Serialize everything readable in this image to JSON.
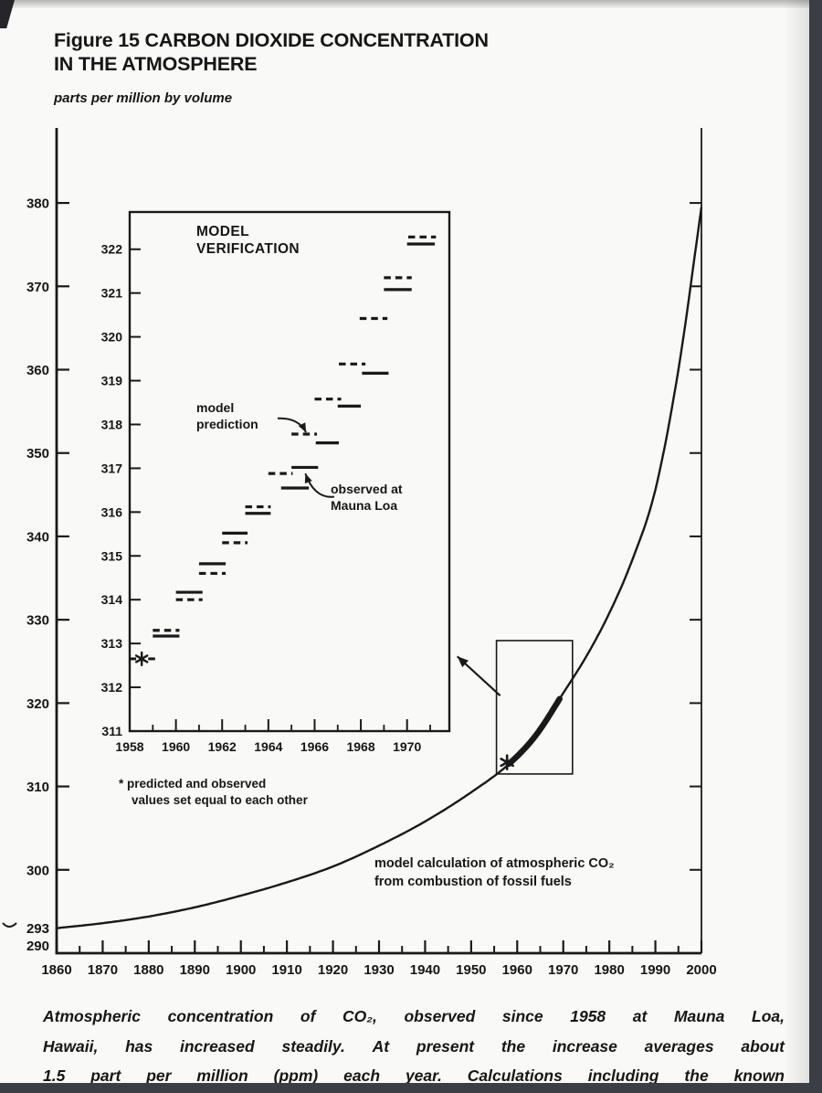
{
  "header": {
    "title_line1": "Figure 15 CARBON DIOXIDE CONCENTRATION",
    "title_line2": "IN THE ATMOSPHERE",
    "units_label": "parts per million by volume"
  },
  "caption": {
    "lines": [
      "Atmospheric concentration of CO₂, observed since 1958 at Mauna Loa,",
      "Hawaii, has increased steadily. At present the increase averages about",
      "1.5 part per million (ppm) each year. Calculations including the known"
    ]
  },
  "colors": {
    "ink": "#191919",
    "paper": "#f9f9f7",
    "scan_bar": "#3b3e45"
  },
  "chart_data": [
    {
      "type": "line",
      "name": "atmospheric-co2-1860-2000",
      "unit": "parts per million by volume",
      "xlim": [
        1860,
        2000
      ],
      "ylim": [
        290,
        389
      ],
      "x_ticks_major": [
        1860,
        1870,
        1880,
        1890,
        1900,
        1910,
        1920,
        1930,
        1940,
        1950,
        1960,
        1970,
        1980,
        1990,
        2000
      ],
      "x_minor_step": 5,
      "y_ticks": [
        300,
        310,
        320,
        330,
        340,
        350,
        360,
        370,
        380
      ],
      "y_extra_labels": [
        {
          "value": 293,
          "label": "293"
        },
        {
          "value": 290,
          "label": "290"
        }
      ],
      "grid": false,
      "series": [
        {
          "name": "model calculation of atmospheric CO₂ from combustion of fossil fuels",
          "points": [
            [
              1860,
              293
            ],
            [
              1870,
              293.6
            ],
            [
              1880,
              294.4
            ],
            [
              1890,
              295.5
            ],
            [
              1900,
              296.9
            ],
            [
              1910,
              298.5
            ],
            [
              1920,
              300.4
            ],
            [
              1930,
              302.9
            ],
            [
              1940,
              305.8
            ],
            [
              1950,
              309.3
            ],
            [
              1958,
              312.6
            ],
            [
              1964,
              316.1
            ],
            [
              1970,
              321.2
            ],
            [
              1975,
              325.6
            ],
            [
              1980,
              330.8
            ],
            [
              1985,
              337.2
            ],
            [
              1990,
              345.6
            ],
            [
              1995,
              360
            ],
            [
              2000,
              379.5
            ]
          ]
        }
      ],
      "observed_overlay": {
        "x_start": 1958.2,
        "x_end": 1969.4,
        "note": "thick stroke = observed Mauna Loa period"
      },
      "asterisk": {
        "x": 1957.8,
        "y": 312.9
      },
      "inset_link_box": {
        "x": [
          1955.5,
          1972
        ],
        "y": [
          311.5,
          327.5
        ]
      },
      "inset_link_arrow": {
        "from": [
          1956.3,
          320.9
        ],
        "to": [
          1947.0,
          325.6
        ]
      },
      "annotation": {
        "line1": "model calculation of atmospheric CO₂",
        "line2": "from combustion of fossil fuels",
        "anchor": [
          1929,
          301.2
        ]
      }
    },
    {
      "type": "segments",
      "name": "model-verification-inset",
      "title_line1": "MODEL",
      "title_line2": "VERIFICATION",
      "xlim": [
        1958,
        1971.83
      ],
      "ylim": [
        311,
        322.85
      ],
      "x_ticks_major": [
        1958,
        1960,
        1962,
        1964,
        1966,
        1968,
        1970
      ],
      "x_ticks_minor": [
        1959,
        1961,
        1963,
        1965,
        1967,
        1969,
        1971
      ],
      "y_ticks": [
        311,
        312,
        313,
        314,
        315,
        316,
        317,
        318,
        319,
        320,
        321,
        322
      ],
      "series": [
        {
          "name": "model prediction",
          "style": "dashed",
          "segments": [
            [
              1959.0,
              1960.15,
              313.3
            ],
            [
              1960.0,
              1961.15,
              314.0
            ],
            [
              1961.0,
              1962.15,
              314.6
            ],
            [
              1962.0,
              1963.1,
              315.3
            ],
            [
              1963.0,
              1964.1,
              316.12
            ],
            [
              1964.0,
              1965.05,
              316.88
            ],
            [
              1965.0,
              1966.1,
              317.78
            ],
            [
              1966.0,
              1967.15,
              318.58
            ],
            [
              1967.05,
              1968.2,
              319.38
            ],
            [
              1967.95,
              1969.15,
              320.42
            ],
            [
              1969.0,
              1970.2,
              321.35
            ],
            [
              1970.05,
              1971.25,
              322.28
            ]
          ]
        },
        {
          "name": "observed at Mauna Loa",
          "style": "solid",
          "segments": [
            [
              1959.0,
              1960.15,
              313.17
            ],
            [
              1960.0,
              1961.15,
              314.17
            ],
            [
              1961.0,
              1962.15,
              314.82
            ],
            [
              1962.0,
              1963.1,
              315.52
            ],
            [
              1963.0,
              1964.1,
              315.97
            ],
            [
              1964.55,
              1965.75,
              316.55
            ],
            [
              1965.0,
              1966.15,
              317.02
            ],
            [
              1966.05,
              1967.05,
              317.58
            ],
            [
              1967.0,
              1968.0,
              318.42
            ],
            [
              1968.05,
              1969.2,
              319.17
            ],
            [
              1969.0,
              1970.2,
              321.08
            ],
            [
              1970.0,
              1971.2,
              322.12
            ]
          ]
        }
      ],
      "equal_start_marker": {
        "x": 1958.52,
        "y": 312.65,
        "dash_left": [
          1958.02,
          1958.28
        ],
        "dash_right": [
          1958.8,
          1959.1
        ]
      },
      "labels": {
        "model_prediction": {
          "line1": "model",
          "line2": "prediction",
          "arrow_from": [
            1964.4,
            318.14
          ],
          "arrow_ctrl": [
            1965.3,
            318.16
          ],
          "arrow_to": [
            1965.63,
            317.82
          ]
        },
        "observed": {
          "line1": "observed at",
          "line2": "Mauna Loa",
          "arrow_from": [
            1966.85,
            316.35
          ],
          "arrow_ctrl": [
            1966.0,
            316.3
          ],
          "arrow_to": [
            1965.6,
            316.88
          ]
        }
      },
      "footnote_line1": "* predicted and observed",
      "footnote_line2": "values set equal to each other"
    }
  ]
}
